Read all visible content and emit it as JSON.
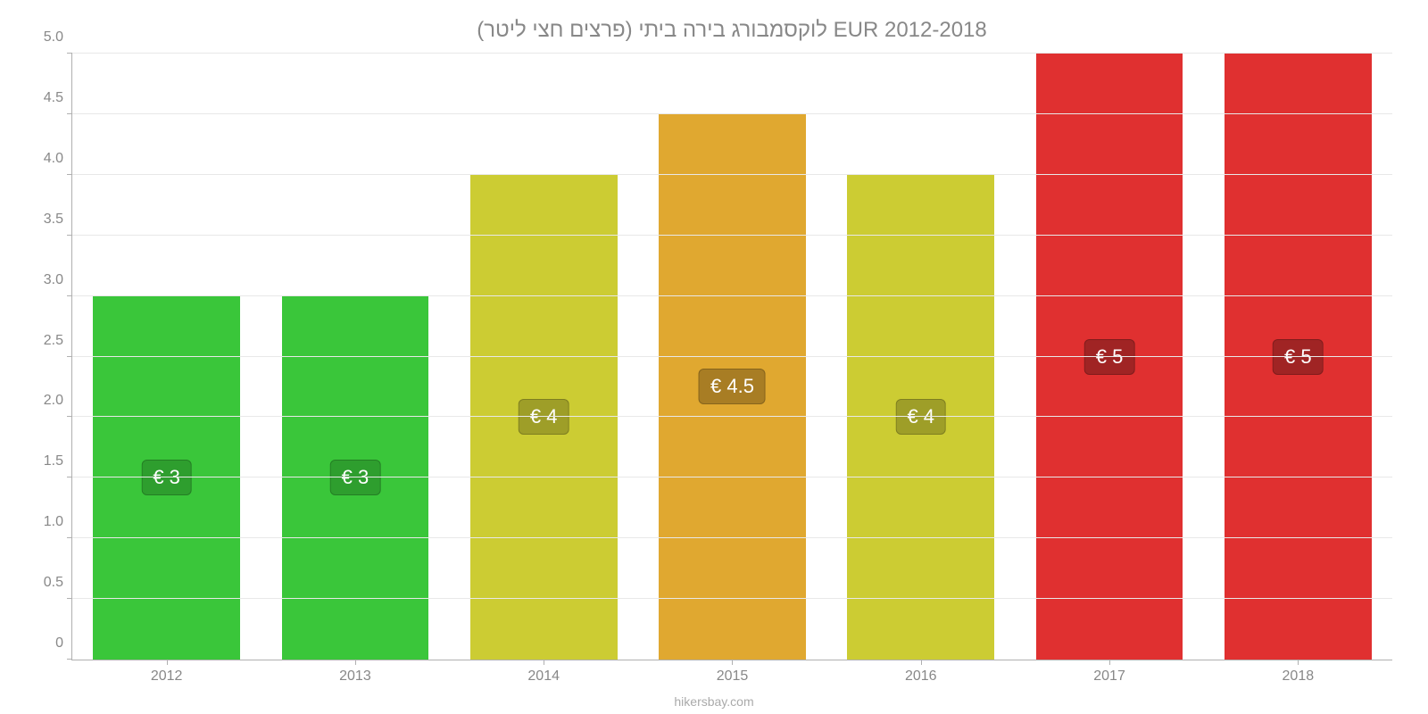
{
  "chart": {
    "type": "bar",
    "title": "לוקסמבורג בירה ביתי (פרצים חצי ליטר) EUR 2012-2018",
    "title_color": "#888888",
    "title_fontsize": 24,
    "background_color": "#ffffff",
    "grid_color": "#e8e8e8",
    "axis_color": "#b0b0b0",
    "tick_label_color": "#888888",
    "tick_label_fontsize": 16,
    "ylim": [
      0,
      5.0
    ],
    "yticks": [
      0,
      0.5,
      1.0,
      1.5,
      2.0,
      2.5,
      3.0,
      3.5,
      4.0,
      4.5,
      5.0
    ],
    "ytick_labels": [
      "0",
      "0.5",
      "1.0",
      "1.5",
      "2.0",
      "2.5",
      "3.0",
      "3.5",
      "4.0",
      "4.5",
      "5.0"
    ],
    "categories": [
      "2012",
      "2013",
      "2014",
      "2015",
      "2016",
      "2017",
      "2018"
    ],
    "values": [
      3,
      3,
      4,
      4.5,
      4,
      5,
      5
    ],
    "bar_colors": [
      "#3ac63a",
      "#3ac63a",
      "#cccc33",
      "#e0a830",
      "#cccc33",
      "#e03030",
      "#e03030"
    ],
    "bar_label_texts": [
      "€ 3",
      "€ 3",
      "€ 4",
      "€ 4.5",
      "€ 4",
      "€ 5",
      "€ 5"
    ],
    "bar_label_bg_colors": [
      "#2e9e2e",
      "#2e9e2e",
      "#9e9e28",
      "#a87d24",
      "#9e9e28",
      "#a02424",
      "#a02424"
    ],
    "bar_label_text_color": "#ffffff",
    "bar_label_fontsize": 22,
    "bar_width": 0.78,
    "attribution": "hikersbay.com",
    "attribution_color": "#aaaaaa"
  }
}
